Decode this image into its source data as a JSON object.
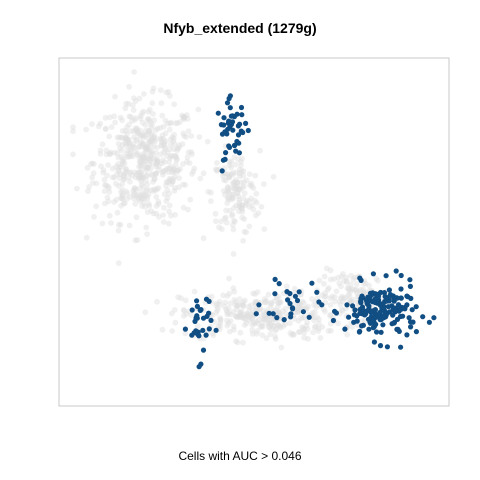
{
  "chart_data": {
    "type": "scatter",
    "title": "Nfyb_extended (1279g)",
    "xlabel": "Cells with AUC > 0.046",
    "ylabel": "",
    "axes_visible": false,
    "grid": false,
    "legend": "none",
    "xlim": [
      0,
      100
    ],
    "ylim": [
      0,
      100
    ],
    "colors": {
      "background_cells": "#dedede",
      "active_cells": "#114e83",
      "frame": "#c8c8c8"
    },
    "clusters": [
      {
        "name": "inactive",
        "type": "background",
        "center": [
          20,
          72
        ],
        "spread": [
          13,
          17
        ],
        "count": 520
      },
      {
        "name": "inactive",
        "type": "background",
        "center": [
          45,
          62
        ],
        "spread": [
          6,
          12
        ],
        "count": 140
      },
      {
        "name": "inactive",
        "type": "background",
        "center": [
          52,
          24
        ],
        "spread": [
          20,
          7
        ],
        "count": 320
      },
      {
        "name": "inactive",
        "type": "background",
        "center": [
          78,
          30
        ],
        "spread": [
          9,
          7
        ],
        "count": 120
      },
      {
        "name": "active",
        "type": "highlight",
        "center": [
          44,
          82
        ],
        "spread": [
          4,
          8
        ],
        "count": 45
      },
      {
        "name": "active",
        "type": "highlight",
        "center": [
          35,
          21
        ],
        "spread": [
          3,
          10
        ],
        "count": 32
      },
      {
        "name": "active",
        "type": "highlight",
        "center": [
          85,
          25
        ],
        "spread": [
          9,
          8
        ],
        "count": 170
      },
      {
        "name": "active",
        "type": "highlight",
        "center": [
          60,
          28
        ],
        "spread": [
          7,
          7
        ],
        "count": 26
      }
    ]
  }
}
